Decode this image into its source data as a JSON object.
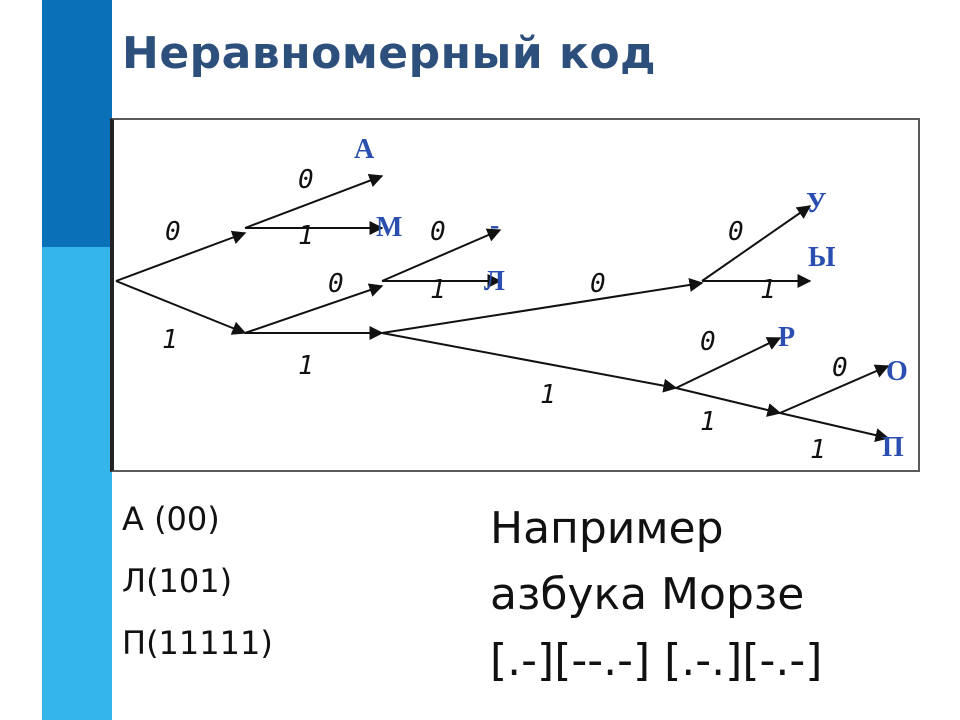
{
  "title": "Неравномерный код",
  "tree": {
    "leaves": [
      "А",
      "М",
      "-",
      "Л",
      "У",
      "Ы",
      "Р",
      "О",
      "П"
    ],
    "edge_labels": [
      "0",
      "1"
    ]
  },
  "codes": [
    "А (00)",
    "Л(101)",
    "П(11111)"
  ],
  "example": {
    "line1": "Например",
    "line2": "азбука Морзе",
    "line3": "[.-][--.-] [.-.][-.-]"
  }
}
